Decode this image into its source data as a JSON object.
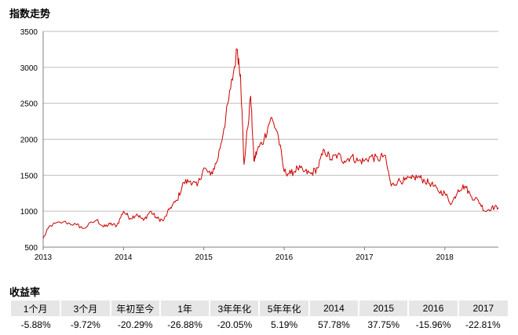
{
  "chart_title": "指数走势",
  "returns_title": "收益率",
  "colors": {
    "line": "#cc0000",
    "grid": "#bfbfbf",
    "axis": "#7f7f7f",
    "header_bg": "#e6e6e6"
  },
  "chart_data": {
    "type": "line",
    "title": "指数走势",
    "xlabel": "",
    "ylabel": "",
    "x_ticks": [
      "2013",
      "2014",
      "2015",
      "2016",
      "2017",
      "2018"
    ],
    "xlim": [
      "2013-01",
      "2018-09"
    ],
    "ylim": [
      500,
      3500
    ],
    "y_ticks": [
      500,
      1000,
      1500,
      2000,
      2500,
      3000,
      3500
    ],
    "grid": true,
    "legend": "none",
    "x": [
      "2013-01",
      "2013-02",
      "2013-04",
      "2013-06",
      "2013-07",
      "2013-09",
      "2013-10",
      "2013-11",
      "2013-12",
      "2014-01",
      "2014-02",
      "2014-03",
      "2014-04",
      "2014-05",
      "2014-06",
      "2014-07",
      "2014-08",
      "2014-09",
      "2014-10",
      "2014-11",
      "2014-12",
      "2015-01",
      "2015-02",
      "2015-03",
      "2015-04",
      "2015-05",
      "2015-06",
      "2015-06b",
      "2015-07",
      "2015-08",
      "2015-08b",
      "2015-09",
      "2015-10",
      "2015-11",
      "2015-12",
      "2016-01",
      "2016-02",
      "2016-03",
      "2016-04",
      "2016-05",
      "2016-06",
      "2016-07",
      "2016-08",
      "2016-09",
      "2016-10",
      "2016-11",
      "2016-12",
      "2017-01",
      "2017-02",
      "2017-03",
      "2017-04",
      "2017-05",
      "2017-06",
      "2017-07",
      "2017-08",
      "2017-09",
      "2017-10",
      "2017-11",
      "2017-12",
      "2018-01",
      "2018-02",
      "2018-03",
      "2018-04",
      "2018-05",
      "2018-06",
      "2018-07",
      "2018-08",
      "2018-09"
    ],
    "series": [
      {
        "values": [
          620,
          800,
          850,
          810,
          760,
          880,
          780,
          820,
          800,
          1000,
          900,
          960,
          870,
          1000,
          900,
          870,
          1050,
          1150,
          1400,
          1420,
          1350,
          1600,
          1500,
          1700,
          2150,
          2700,
          3250,
          2900,
          1650,
          2600,
          1700,
          1850,
          2000,
          2300,
          2100,
          1550,
          1520,
          1600,
          1550,
          1520,
          1600,
          1850,
          1720,
          1780,
          1700,
          1760,
          1700,
          1700,
          1760,
          1720,
          1780,
          1350,
          1420,
          1430,
          1450,
          1480,
          1420,
          1380,
          1280,
          1250,
          1100,
          1300,
          1350,
          1200,
          1150,
          1000,
          1050,
          1050
        ]
      }
    ]
  },
  "returns_table": {
    "headers": [
      "1个月",
      "3个月",
      "年初至今",
      "1年",
      "3年年化",
      "5年年化",
      "2014",
      "2015",
      "2016",
      "2017"
    ],
    "values": [
      "-5.88%",
      "-9.72%",
      "-20.29%",
      "-26.88%",
      "-20.05%",
      "5.19%",
      "57.78%",
      "37.75%",
      "-15.96%",
      "-22.81%"
    ]
  }
}
